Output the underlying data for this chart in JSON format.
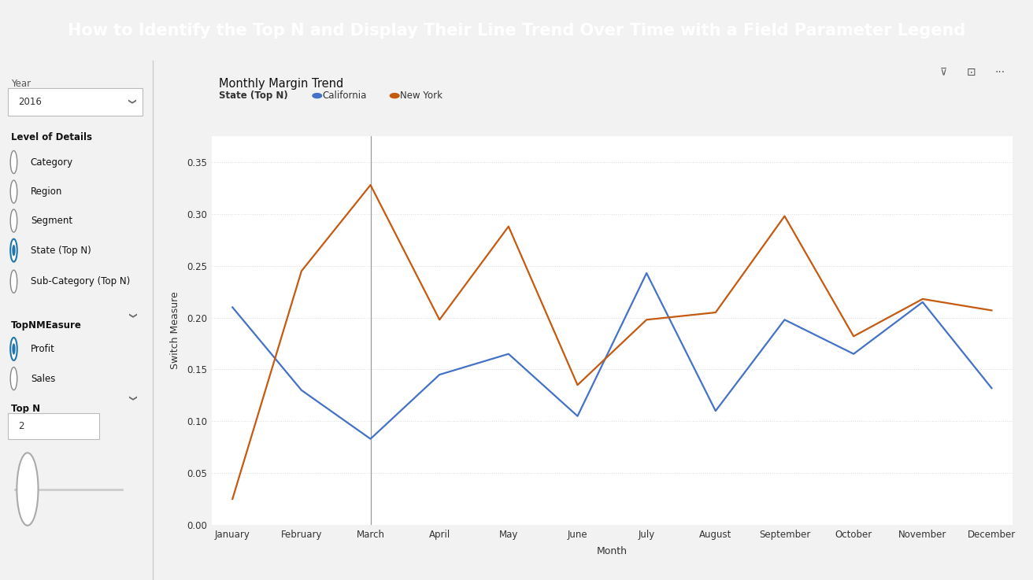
{
  "title": "How to Identify the Top N and Display Their Line Trend Over Time with a Field Parameter Legend",
  "title_bg": "#1F6FBF",
  "title_color": "#FFFFFF",
  "chart_title": "Monthly Margin Trend",
  "legend_label": "State (Top N)",
  "legend_entries": [
    "California",
    "New York"
  ],
  "legend_colors": [
    "#4472C4",
    "#C55A11"
  ],
  "xlabel": "Month",
  "ylabel": "Switch Measure",
  "months": [
    "January",
    "February",
    "March",
    "April",
    "May",
    "June",
    "July",
    "August",
    "September",
    "October",
    "November",
    "December"
  ],
  "california": [
    0.21,
    0.13,
    0.083,
    0.145,
    0.165,
    0.105,
    0.243,
    0.11,
    0.198,
    0.165,
    0.215,
    0.132
  ],
  "new_york": [
    0.025,
    0.245,
    0.328,
    0.198,
    0.288,
    0.135,
    0.198,
    0.205,
    0.298,
    0.182,
    0.218,
    0.207
  ],
  "vline_x": 2,
  "ylim": [
    0.0,
    0.375
  ],
  "yticks": [
    0.0,
    0.05,
    0.1,
    0.15,
    0.2,
    0.25,
    0.3,
    0.35
  ],
  "panel_bg": "#FFFFFF",
  "plot_bg": "#FFFFFF",
  "grid_color": "#DDDDDD",
  "year_label": "Year",
  "year_value": "2016",
  "level_details_label": "Level of Details",
  "level_details_items": [
    "Category",
    "Region",
    "Segment",
    "State (Top N)",
    "Sub-Category (Top N)"
  ],
  "level_details_selected": 3,
  "topn_measure_label": "TopNMEasure",
  "topn_measure_items": [
    "Profit",
    "Sales"
  ],
  "topn_measure_selected": 0,
  "topn_label": "Top N",
  "topn_value": "2",
  "outer_bg": "#F2F2F2"
}
